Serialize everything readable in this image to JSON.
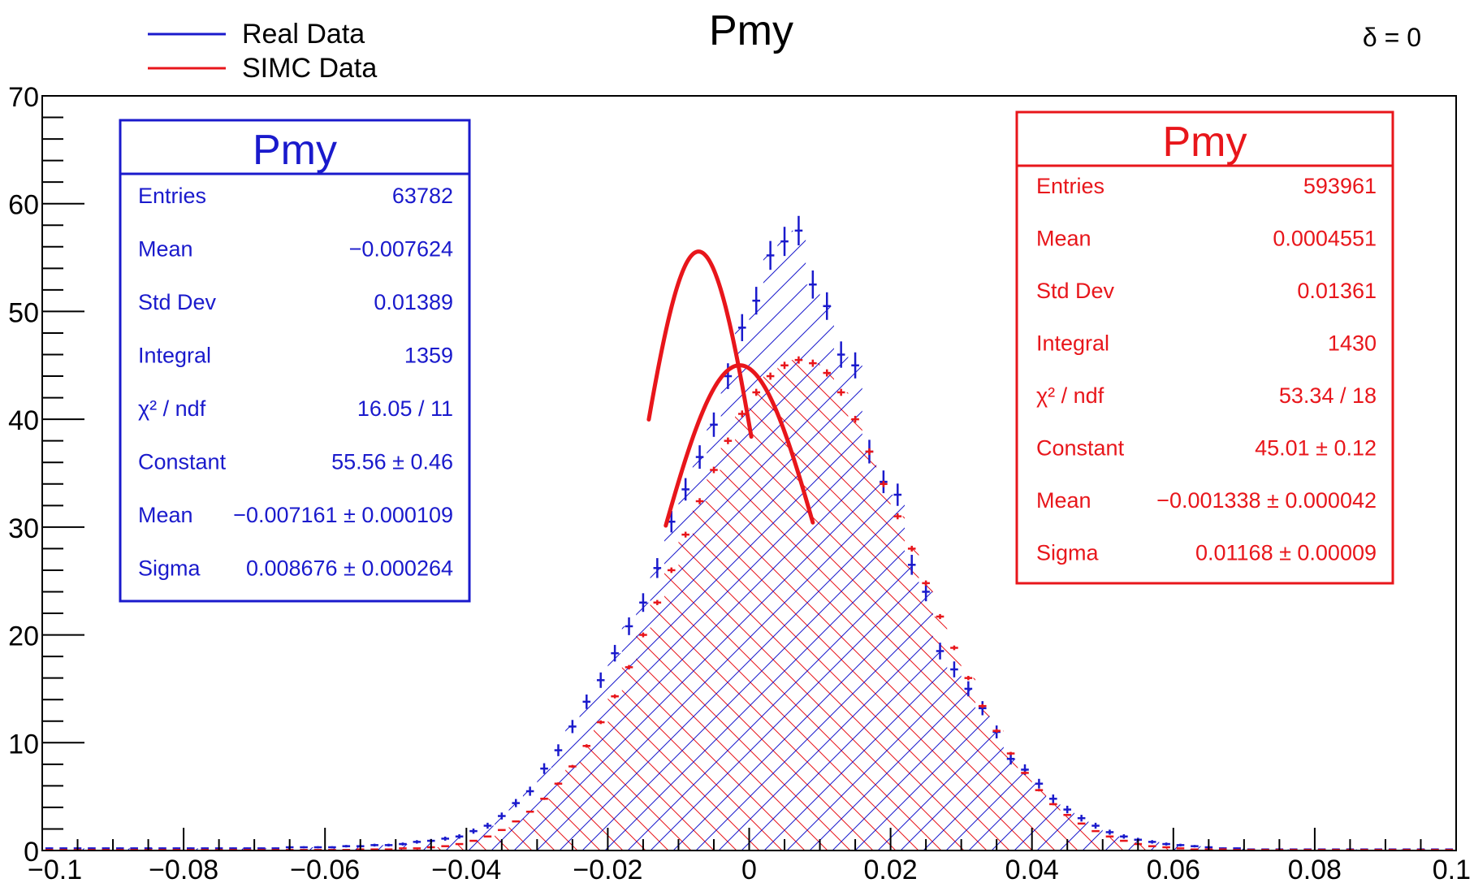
{
  "chart_data": {
    "type": "histogram",
    "title": "Pmy",
    "corner_label": "δ = 0",
    "xlim": [
      -0.1,
      0.1
    ],
    "ylim": [
      0,
      70
    ],
    "x_ticks": [
      "−0.1",
      "−0.08",
      "−0.06",
      "−0.04",
      "−0.02",
      "0",
      "0.02",
      "0.04",
      "0.06",
      "0.08",
      "0.1"
    ],
    "x_tick_values": [
      -0.1,
      -0.08,
      -0.06,
      -0.04,
      -0.02,
      0,
      0.02,
      0.04,
      0.06,
      0.08,
      0.1
    ],
    "y_ticks": [
      "0",
      "10",
      "20",
      "30",
      "40",
      "50",
      "60",
      "70"
    ],
    "y_tick_values": [
      0,
      10,
      20,
      30,
      40,
      50,
      60,
      70
    ],
    "legend_position": "top-left",
    "legend": [
      {
        "label": "Real Data",
        "color": "#1a1acc"
      },
      {
        "label": "SIMC Data",
        "color": "#e8161b"
      }
    ],
    "bin_width": 0.002,
    "series": [
      {
        "name": "Real Data",
        "color": "#1a1acc",
        "hatch": "blue-diagonal",
        "x": [
          -0.099,
          -0.097,
          -0.095,
          -0.093,
          -0.091,
          -0.089,
          -0.087,
          -0.085,
          -0.083,
          -0.081,
          -0.079,
          -0.077,
          -0.075,
          -0.073,
          -0.071,
          -0.069,
          -0.067,
          -0.065,
          -0.063,
          -0.061,
          -0.059,
          -0.057,
          -0.055,
          -0.053,
          -0.051,
          -0.049,
          -0.047,
          -0.045,
          -0.043,
          -0.041,
          -0.039,
          -0.037,
          -0.035,
          -0.033,
          -0.031,
          -0.029,
          -0.027,
          -0.025,
          -0.023,
          -0.021,
          -0.019,
          -0.017,
          -0.015,
          -0.013,
          -0.011,
          -0.009,
          -0.007,
          -0.005,
          -0.003,
          -0.001,
          0.001,
          0.003,
          0.005,
          0.007,
          0.009,
          0.011,
          0.013,
          0.015,
          0.017,
          0.019,
          0.021,
          0.023,
          0.025,
          0.027,
          0.029,
          0.031,
          0.033,
          0.035,
          0.037,
          0.039,
          0.041,
          0.043,
          0.045,
          0.047,
          0.049,
          0.051,
          0.053,
          0.055,
          0.057,
          0.059,
          0.061,
          0.063,
          0.065,
          0.067,
          0.069,
          0.071,
          0.073,
          0.075,
          0.077,
          0.079,
          0.081,
          0.083,
          0.085,
          0.087,
          0.089,
          0.091,
          0.093,
          0.095,
          0.097,
          0.099
        ],
        "y": [
          0.2,
          0.2,
          0.2,
          0.2,
          0.2,
          0.2,
          0.2,
          0.2,
          0.2,
          0.2,
          0.2,
          0.2,
          0.2,
          0.2,
          0.2,
          0.2,
          0.2,
          0.3,
          0.3,
          0.3,
          0.3,
          0.4,
          0.4,
          0.5,
          0.5,
          0.6,
          0.8,
          0.9,
          1.1,
          1.3,
          1.8,
          2.3,
          3.2,
          4.4,
          5.5,
          7.6,
          9.3,
          11.5,
          13.8,
          15.8,
          18.3,
          20.8,
          23.0,
          26.2,
          30.5,
          33.5,
          36.5,
          39.5,
          44.0,
          48.5,
          51.0,
          55.2,
          56.5,
          57.5,
          52.5,
          50.5,
          46.0,
          45.0,
          37.0,
          34.2,
          33.0,
          26.5,
          24.0,
          18.5,
          16.8,
          15.0,
          13.2,
          11.0,
          8.5,
          7.5,
          6.2,
          4.8,
          3.8,
          3.0,
          2.3,
          1.7,
          1.3,
          1.0,
          0.8,
          0.6,
          0.5,
          0.4,
          0.3,
          0.2,
          0.2,
          0.1,
          0.1,
          0.1,
          0.1,
          0.1,
          0.1,
          0.1,
          0.1,
          0.1,
          0.1,
          0.1,
          0.1,
          0.1,
          0.1,
          0.1
        ]
      },
      {
        "name": "SIMC Data",
        "color": "#e8161b",
        "hatch": "red-diagonal",
        "x": [
          -0.099,
          -0.097,
          -0.095,
          -0.093,
          -0.091,
          -0.089,
          -0.087,
          -0.085,
          -0.083,
          -0.081,
          -0.079,
          -0.077,
          -0.075,
          -0.073,
          -0.071,
          -0.069,
          -0.067,
          -0.065,
          -0.063,
          -0.061,
          -0.059,
          -0.057,
          -0.055,
          -0.053,
          -0.051,
          -0.049,
          -0.047,
          -0.045,
          -0.043,
          -0.041,
          -0.039,
          -0.037,
          -0.035,
          -0.033,
          -0.031,
          -0.029,
          -0.027,
          -0.025,
          -0.023,
          -0.021,
          -0.019,
          -0.017,
          -0.015,
          -0.013,
          -0.011,
          -0.009,
          -0.007,
          -0.005,
          -0.003,
          -0.001,
          0.001,
          0.003,
          0.005,
          0.007,
          0.009,
          0.011,
          0.013,
          0.015,
          0.017,
          0.019,
          0.021,
          0.023,
          0.025,
          0.027,
          0.029,
          0.031,
          0.033,
          0.035,
          0.037,
          0.039,
          0.041,
          0.043,
          0.045,
          0.047,
          0.049,
          0.051,
          0.053,
          0.055,
          0.057,
          0.059,
          0.061,
          0.063,
          0.065,
          0.067,
          0.069,
          0.071,
          0.073,
          0.075,
          0.077,
          0.079,
          0.081,
          0.083,
          0.085,
          0.087,
          0.089,
          0.091,
          0.093,
          0.095,
          0.097,
          0.099
        ],
        "y": [
          0.05,
          0.05,
          0.05,
          0.05,
          0.05,
          0.05,
          0.05,
          0.05,
          0.05,
          0.05,
          0.05,
          0.05,
          0.05,
          0.05,
          0.05,
          0.05,
          0.05,
          0.05,
          0.05,
          0.05,
          0.05,
          0.05,
          0.1,
          0.1,
          0.1,
          0.2,
          0.2,
          0.3,
          0.4,
          0.6,
          0.9,
          1.3,
          1.9,
          2.7,
          3.6,
          4.8,
          6.2,
          7.8,
          9.7,
          11.9,
          14.3,
          17.0,
          20.0,
          23.0,
          26.0,
          29.3,
          32.4,
          35.3,
          38.0,
          40.5,
          42.5,
          44.0,
          45.0,
          45.5,
          45.2,
          44.3,
          42.5,
          40.0,
          37.0,
          34.0,
          31.0,
          28.0,
          24.8,
          21.7,
          18.8,
          16.0,
          13.4,
          11.1,
          9.0,
          7.2,
          5.6,
          4.3,
          3.3,
          2.5,
          1.8,
          1.3,
          0.9,
          0.6,
          0.4,
          0.3,
          0.2,
          0.1,
          0.1,
          0.1,
          0.05,
          0.05,
          0.05,
          0.05,
          0.05,
          0.05,
          0.05,
          0.05,
          0.05,
          0.05,
          0.05,
          0.05,
          0.05,
          0.05,
          0.05,
          0.05
        ]
      }
    ],
    "fits": [
      {
        "series": "Real Data",
        "type": "gaus",
        "constant": 55.56,
        "mean": -0.007161,
        "sigma": 0.008676,
        "xrange": [
          -0.0142,
          0.0003
        ],
        "color": "#e8161b"
      },
      {
        "series": "SIMC Data",
        "type": "gaus",
        "constant": 45.01,
        "mean": -0.001338,
        "sigma": 0.01168,
        "xrange": [
          -0.0118,
          0.009
        ],
        "color": "#e8161b"
      }
    ],
    "stats_boxes": [
      {
        "title": "Pmy",
        "color": "#1a1acc",
        "position": "top-left",
        "rows": [
          {
            "label": "Entries",
            "value": "63782"
          },
          {
            "label": "Mean",
            "value": "−0.007624"
          },
          {
            "label": "Std Dev",
            "value": "0.01389"
          },
          {
            "label": "Integral",
            "value": "1359"
          },
          {
            "label": "χ² / ndf",
            "value": "16.05 / 11"
          },
          {
            "label": "Constant",
            "value": "55.56 ± 0.46"
          },
          {
            "label": "Mean",
            "value": "−0.007161 ± 0.000109"
          },
          {
            "label": "Sigma",
            "value": "0.008676 ± 0.000264"
          }
        ]
      },
      {
        "title": "Pmy",
        "color": "#e8161b",
        "position": "top-right",
        "rows": [
          {
            "label": "Entries",
            "value": "593961"
          },
          {
            "label": "Mean",
            "value": "0.0004551"
          },
          {
            "label": "Std Dev",
            "value": "0.01361"
          },
          {
            "label": "Integral",
            "value": "1430"
          },
          {
            "label": "χ² / ndf",
            "value": "53.34 / 18"
          },
          {
            "label": "Constant",
            "value": "45.01 ± 0.12"
          },
          {
            "label": "Mean",
            "value": "−0.001338 ± 0.000042"
          },
          {
            "label": "Sigma",
            "value": "0.01168 ± 0.00009"
          }
        ]
      }
    ]
  }
}
